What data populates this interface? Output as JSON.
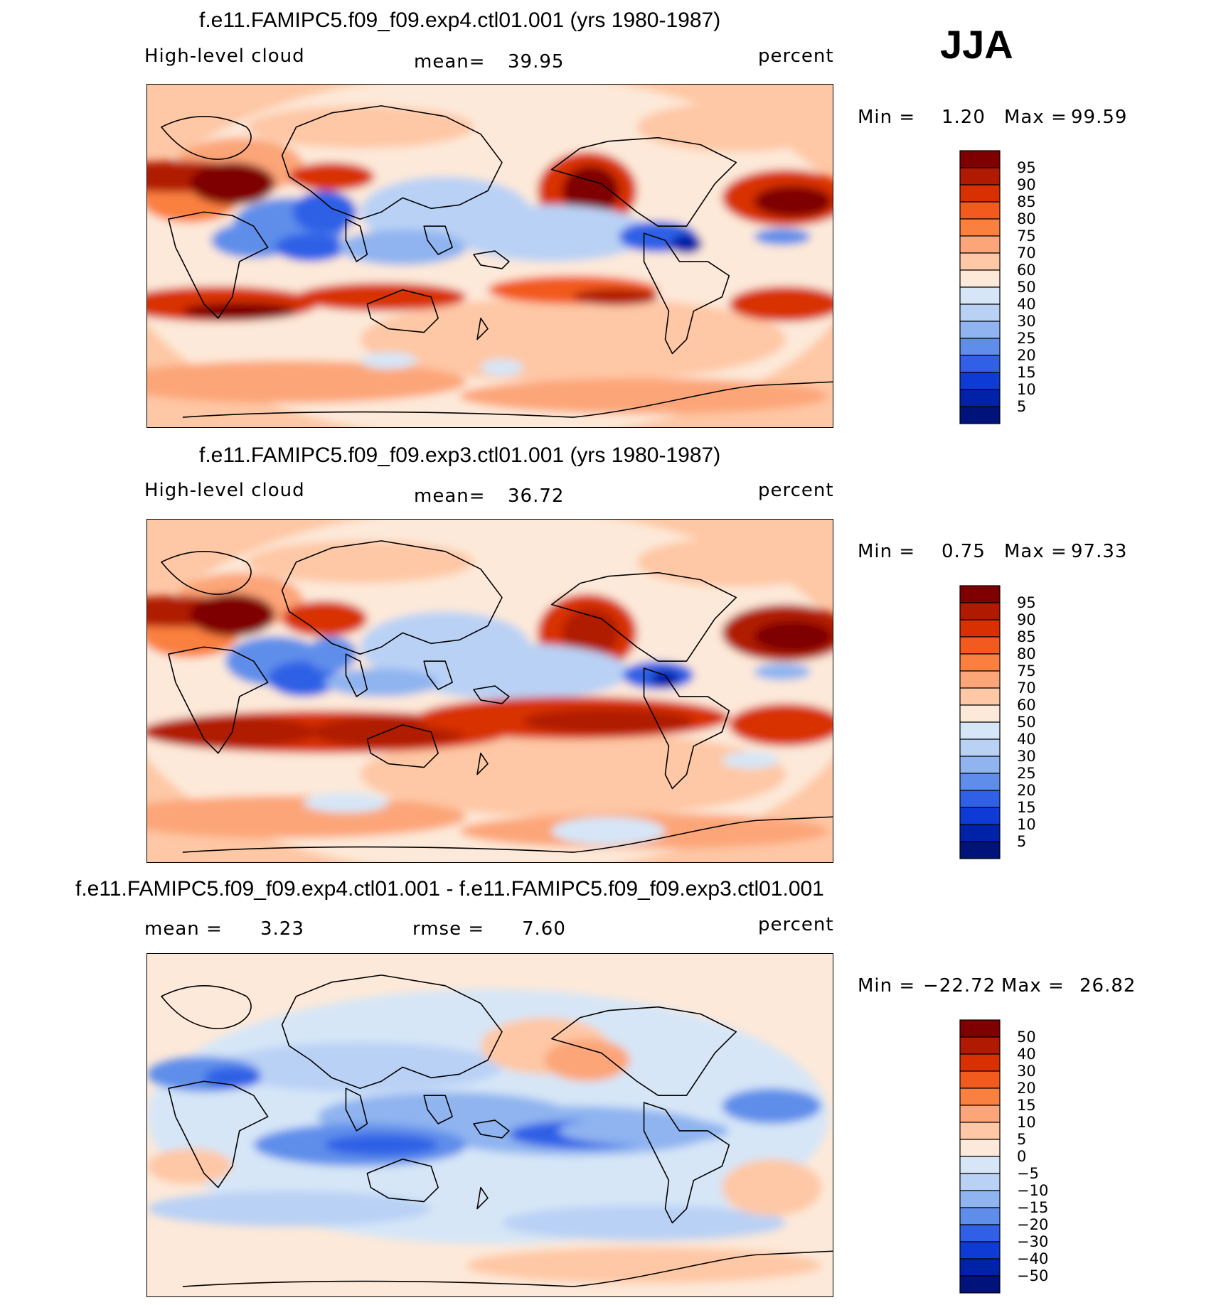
{
  "season": "JJA",
  "chart_data": [
    {
      "type": "heatmap",
      "title": "f.e11.FAMIPC5.f09_f09.exp4.ctl01.001 (yrs 1980-1987)",
      "variable": "High-level cloud",
      "units": "percent",
      "stat_label": "mean=",
      "stat_value": "39.95",
      "min_label": "Min =",
      "min_value": "1.20",
      "max_label": "Max =",
      "max_value": "99.59",
      "colorbar_levels": [
        "95",
        "90",
        "85",
        "80",
        "75",
        "70",
        "60",
        "50",
        "40",
        "30",
        "25",
        "20",
        "15",
        "10",
        "5"
      ],
      "colorbar_colors": [
        "#7f0000",
        "#b01a00",
        "#d83000",
        "#f25a1e",
        "#fa8040",
        "#fca578",
        "#fec7a5",
        "#fde9d9",
        "#d6e6f7",
        "#b9d1f5",
        "#8fb4f0",
        "#5e8eea",
        "#2f60e6",
        "#0e3bd6",
        "#0022a8",
        "#00137a"
      ],
      "global_mean": 39.95
    },
    {
      "type": "heatmap",
      "title": "f.e11.FAMIPC5.f09_f09.exp3.ctl01.001 (yrs 1980-1987)",
      "variable": "High-level cloud",
      "units": "percent",
      "stat_label": "mean=",
      "stat_value": "36.72",
      "min_label": "Min =",
      "min_value": "0.75",
      "max_label": "Max =",
      "max_value": "97.33",
      "colorbar_levels": [
        "95",
        "90",
        "85",
        "80",
        "75",
        "70",
        "60",
        "50",
        "40",
        "30",
        "25",
        "20",
        "15",
        "10",
        "5"
      ],
      "colorbar_colors": [
        "#7f0000",
        "#b01a00",
        "#d83000",
        "#f25a1e",
        "#fa8040",
        "#fca578",
        "#fec7a5",
        "#fde9d9",
        "#d6e6f7",
        "#b9d1f5",
        "#8fb4f0",
        "#5e8eea",
        "#2f60e6",
        "#0e3bd6",
        "#0022a8",
        "#00137a"
      ],
      "global_mean": 36.72
    },
    {
      "type": "heatmap",
      "title": "f.e11.FAMIPC5.f09_f09.exp4.ctl01.001 - f.e11.FAMIPC5.f09_f09.exp3.ctl01.001",
      "variable": "",
      "units": "percent",
      "stat_label": "mean =",
      "stat_value": "3.23",
      "rmse_label": "rmse =",
      "rmse_value": "7.60",
      "min_label": "Min =",
      "min_value": "−22.72",
      "max_label": "Max =",
      "max_value": "26.82",
      "colorbar_levels": [
        "50",
        "40",
        "30",
        "20",
        "15",
        "10",
        "5",
        "0",
        "−5",
        "−10",
        "−15",
        "−20",
        "−30",
        "−40",
        "−50"
      ],
      "colorbar_colors": [
        "#7f0000",
        "#b01a00",
        "#d83000",
        "#f25a1e",
        "#fa8040",
        "#fca578",
        "#fec7a5",
        "#fde9d9",
        "#d6e6f7",
        "#b9d1f5",
        "#8fb4f0",
        "#5e8eea",
        "#2f60e6",
        "#0e3bd6",
        "#0022a8",
        "#00137a"
      ],
      "global_mean": 3.23
    }
  ],
  "colors": {
    "coastline": "#000000"
  }
}
